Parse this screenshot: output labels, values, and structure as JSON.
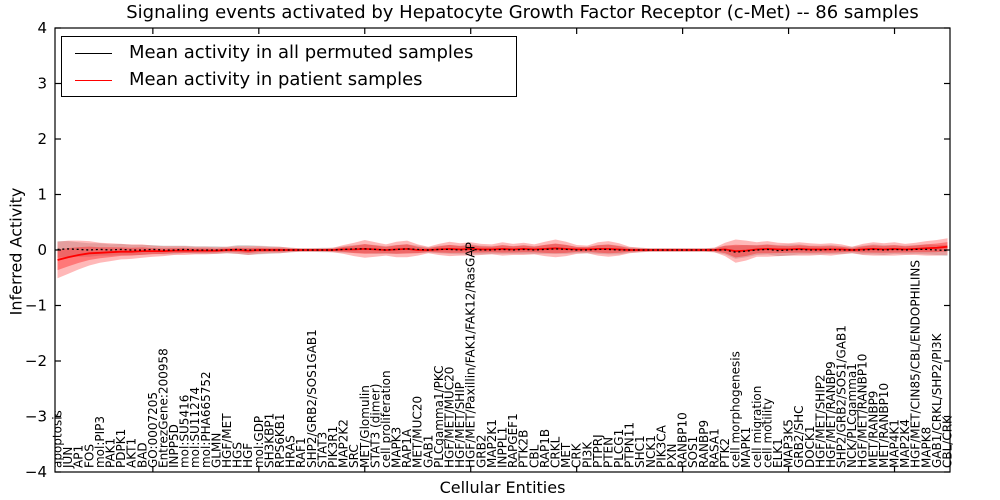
{
  "title": "Signaling events activated by Hepatocyte Growth Factor Receptor (c-Met) -- 86 samples",
  "xlabel": "Cellular Entities",
  "ylabel": "Inferred Activity",
  "legend": {
    "items": [
      {
        "label": "Mean activity in all permuted samples",
        "color": "#000000"
      },
      {
        "label": "Mean activity in patient samples",
        "color": "#ff0000"
      }
    ]
  },
  "colors": {
    "patient_line": "#ff0000",
    "permuted_line": "#000000",
    "patient_band": "#ff0000",
    "permuted_band": "#999999",
    "axis": "#000000"
  },
  "chart_data": {
    "type": "line",
    "title": "Signaling events activated by Hepatocyte Growth Factor Receptor (c-Met) -- 86 samples",
    "xlabel": "Cellular Entities",
    "ylabel": "Inferred Activity",
    "ylim": [
      -4,
      4
    ],
    "yticks": [
      4,
      3,
      2,
      1,
      0,
      -1,
      -2,
      -3,
      -4
    ],
    "grid": false,
    "legend_position": "upper left",
    "x_major_tick_indices": [
      9,
      19,
      29,
      39,
      49,
      59,
      69,
      79
    ],
    "categories": [
      "apoptosis",
      "JUN",
      "AP1",
      "FOS",
      "mol:PIP3",
      "PAK1",
      "PDPK1",
      "AKT1",
      "BAD",
      "GO:0007205",
      "EntrezGene:200958",
      "INPP5D",
      "mol:SU5416",
      "mol:SU11274",
      "mol:PHA665752",
      "GLMN",
      "HGF/MET",
      "HGS",
      "HGF",
      "mol:GDP",
      "SH3KBP1",
      "RPS6KB1",
      "HRAS",
      "RAF1",
      "SHP2/GRB2/SOS1GAB1",
      "STAT3",
      "PIK3R1",
      "MAP2K2",
      "SRC",
      "MET/Glomulin",
      "STAT3 (dimer)",
      "cell proliferation",
      "MAPK3",
      "RAP1A",
      "MET/MUC20",
      "GAB1",
      "PLCgamma1/PKC",
      "HGF/MET/MUC20",
      "HGF/MET/SHIP",
      "HGF/MET/Paxillin/FAK1/FAK12/RasGAP",
      "GRB2",
      "MAP2K1",
      "INPPL1",
      "RAPGEF1",
      "PTK2B",
      "CBL",
      "RAP1B",
      "CRKL",
      "MET",
      "CRK",
      "PI3K",
      "PTPRJ",
      "PTEN",
      "PLCG1",
      "PTPN11",
      "SHC1",
      "NCK1",
      "PIK3CA",
      "PXN",
      "RANBP10",
      "SOS1",
      "RANBP9",
      "RASA1",
      "PTK2",
      "cell morphogenesis",
      "MAPK1",
      "cell migration",
      "cell motility",
      "ELK1",
      "MAP3K5",
      "GRB2/SHC",
      "DOCK1",
      "HGF/MET/SHIP2",
      "HGF/MET/RANBP9",
      "SHP2/GRB2/SOS1/GAB1",
      "NCK/PLCgamma1",
      "HGF/MET/RANBP10",
      "MET/RANBP9",
      "MET/RANBP10",
      "MAP4K1",
      "MAP2K4",
      "HGF/MET/CIN85/CBL/ENDOPHILINS",
      "MAPK8",
      "GAB1/CRKL/SHP2/PI3K",
      "CBL/CRK"
    ],
    "series": [
      {
        "name": "Mean activity in all permuted samples",
        "color": "#000000",
        "style": "dotted",
        "values": [
          0.01,
          0.02,
          0.01,
          0.0,
          0.01,
          0.0,
          0.01,
          0.0,
          0.0,
          0.01,
          0.0,
          0.0,
          0.01,
          0.0,
          0.0,
          0.0,
          0.0,
          0.01,
          0.0,
          0.0,
          0.0,
          0.0,
          0.0,
          0.0,
          0.0,
          0.0,
          0.0,
          0.01,
          0.02,
          0.02,
          0.01,
          0.0,
          0.01,
          0.02,
          0.01,
          0.0,
          0.01,
          0.01,
          0.0,
          0.01,
          0.0,
          0.0,
          0.01,
          0.0,
          0.01,
          0.0,
          0.01,
          0.02,
          0.01,
          0.0,
          0.0,
          0.01,
          0.01,
          0.0,
          0.0,
          0.0,
          0.0,
          0.0,
          0.0,
          0.0,
          0.0,
          0.0,
          0.0,
          0.0,
          -0.04,
          -0.02,
          0.0,
          0.01,
          -0.01,
          0.0,
          0.01,
          0.0,
          0.0,
          0.01,
          0.0,
          0.0,
          0.0,
          0.01,
          0.0,
          0.01,
          0.0,
          0.01,
          0.01,
          0.0,
          -0.01
        ],
        "spread": [
          0.15,
          0.14,
          0.13,
          0.12,
          0.11,
          0.1,
          0.1,
          0.09,
          0.09,
          0.08,
          0.08,
          0.08,
          0.07,
          0.07,
          0.07,
          0.07,
          0.06,
          0.08,
          0.09,
          0.08,
          0.07,
          0.06,
          0.04,
          0.03,
          0.03,
          0.04,
          0.04,
          0.06,
          0.07,
          0.08,
          0.08,
          0.07,
          0.08,
          0.08,
          0.07,
          0.05,
          0.07,
          0.08,
          0.08,
          0.09,
          0.08,
          0.07,
          0.08,
          0.07,
          0.08,
          0.07,
          0.08,
          0.09,
          0.08,
          0.06,
          0.06,
          0.08,
          0.09,
          0.08,
          0.05,
          0.04,
          0.03,
          0.03,
          0.03,
          0.03,
          0.03,
          0.03,
          0.04,
          0.08,
          0.12,
          0.11,
          0.09,
          0.09,
          0.1,
          0.1,
          0.09,
          0.08,
          0.08,
          0.08,
          0.07,
          0.06,
          0.08,
          0.09,
          0.09,
          0.08,
          0.08,
          0.08,
          0.09,
          0.09,
          0.1
        ]
      },
      {
        "name": "Mean activity in patient samples",
        "color": "#ff0000",
        "style": "solid",
        "values": [
          -0.18,
          -0.13,
          -0.09,
          -0.06,
          -0.05,
          -0.04,
          -0.03,
          -0.03,
          -0.02,
          -0.02,
          -0.02,
          -0.01,
          -0.01,
          -0.01,
          -0.01,
          -0.01,
          0.0,
          0.0,
          -0.01,
          0.0,
          0.0,
          0.0,
          0.0,
          0.0,
          0.0,
          0.0,
          0.0,
          0.01,
          0.01,
          0.02,
          0.01,
          0.0,
          0.01,
          0.02,
          0.0,
          0.0,
          0.01,
          0.02,
          0.01,
          0.02,
          0.01,
          0.01,
          0.02,
          0.01,
          0.02,
          0.01,
          0.02,
          0.03,
          0.02,
          0.01,
          0.01,
          0.02,
          0.02,
          0.01,
          0.0,
          0.0,
          0.0,
          0.0,
          0.0,
          0.0,
          0.0,
          0.0,
          0.0,
          0.01,
          -0.02,
          -0.01,
          0.01,
          0.02,
          0.01,
          0.01,
          0.02,
          0.01,
          0.01,
          0.01,
          0.01,
          0.0,
          0.01,
          0.02,
          0.01,
          0.02,
          0.01,
          0.02,
          0.03,
          0.04,
          0.06
        ],
        "spread": [
          0.33,
          0.3,
          0.26,
          0.22,
          0.18,
          0.16,
          0.14,
          0.13,
          0.12,
          0.1,
          0.09,
          0.08,
          0.08,
          0.07,
          0.07,
          0.06,
          0.06,
          0.07,
          0.08,
          0.07,
          0.06,
          0.06,
          0.04,
          0.03,
          0.03,
          0.03,
          0.04,
          0.08,
          0.12,
          0.16,
          0.13,
          0.1,
          0.14,
          0.15,
          0.1,
          0.06,
          0.1,
          0.13,
          0.11,
          0.12,
          0.1,
          0.09,
          0.12,
          0.1,
          0.11,
          0.09,
          0.13,
          0.16,
          0.13,
          0.08,
          0.07,
          0.12,
          0.14,
          0.11,
          0.06,
          0.04,
          0.03,
          0.03,
          0.03,
          0.03,
          0.03,
          0.03,
          0.04,
          0.12,
          0.21,
          0.18,
          0.13,
          0.14,
          0.12,
          0.11,
          0.12,
          0.11,
          0.1,
          0.11,
          0.09,
          0.06,
          0.1,
          0.12,
          0.11,
          0.12,
          0.1,
          0.11,
          0.13,
          0.14,
          0.15
        ]
      }
    ]
  }
}
